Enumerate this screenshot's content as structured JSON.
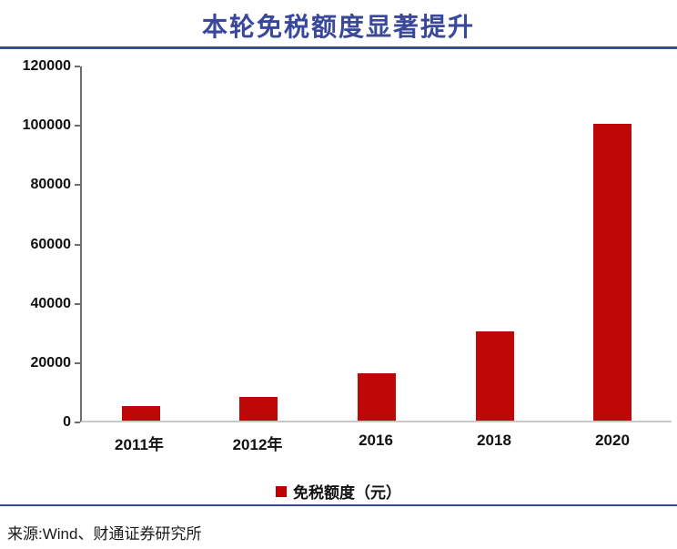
{
  "title": "本轮免税额度显著提升",
  "source": "来源:Wind、财通证券研究所",
  "legend": {
    "label": "免税额度（元）",
    "swatch_color": "#c00000"
  },
  "colors": {
    "accent_navy": "#3a489c",
    "bar_red": "#be0808",
    "axis_dark": "#6e6e6e",
    "axis_light": "#c9c9c9"
  },
  "chart_data": {
    "type": "bar",
    "title": "本轮免税额度显著提升",
    "categories": [
      "2011年",
      "2012年",
      "2016",
      "2018",
      "2020"
    ],
    "values": [
      5000,
      8000,
      16000,
      30000,
      100000
    ],
    "series_name": "免税额度（元）",
    "xlabel": "",
    "ylabel": "",
    "ylim": [
      0,
      120000
    ],
    "yticks": [
      0,
      20000,
      40000,
      60000,
      80000,
      100000,
      120000
    ],
    "grid": false,
    "legend_position": "bottom"
  }
}
